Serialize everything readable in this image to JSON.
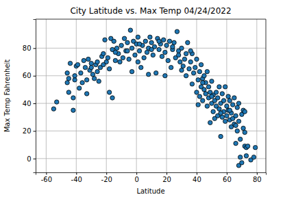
{
  "chart_data": {
    "type": "scatter",
    "title": "City Latitude vs. Max Temp 04/24/2022",
    "x_label": "Latitude",
    "y_label": "Max Temp Fahrenheit",
    "x": [
      -55,
      -53,
      -46,
      -46,
      -45,
      -45,
      -44,
      -42,
      -42,
      -41,
      -41,
      -40,
      -39,
      -38,
      -37,
      -36,
      -35,
      -34,
      -33,
      -33,
      -32,
      -31,
      -30,
      -29,
      -28,
      -27,
      -26,
      -25,
      -24,
      -23,
      -22,
      -21,
      -20,
      -19,
      -18,
      -18,
      -17,
      -16,
      -16,
      -15,
      -14,
      -13,
      -12,
      -11,
      -10,
      -9,
      -8,
      -7,
      -6,
      -5,
      -4,
      -3,
      -3,
      -2,
      -1,
      0,
      1,
      1,
      2,
      3,
      4,
      5,
      6,
      7,
      8,
      8,
      9,
      10,
      11,
      12,
      13,
      14,
      15,
      16,
      17,
      18,
      19,
      19,
      20,
      21,
      22,
      23,
      24,
      25,
      26,
      27,
      28,
      29,
      30,
      30,
      31,
      32,
      33,
      33,
      34,
      35,
      36,
      37,
      37,
      38,
      39,
      40,
      40,
      41,
      41,
      42,
      42,
      43,
      43,
      44,
      44,
      45,
      45,
      46,
      46,
      47,
      47,
      48,
      48,
      49,
      49,
      50,
      50,
      51,
      51,
      52,
      52,
      53,
      53,
      54,
      54,
      55,
      55,
      56,
      56,
      57,
      57,
      58,
      58,
      59,
      59,
      60,
      60,
      61,
      61,
      62,
      62,
      63,
      63,
      64,
      64,
      65,
      65,
      66,
      66,
      67,
      67,
      68,
      68,
      69,
      69,
      70,
      70,
      71,
      71,
      72,
      72,
      73,
      73,
      74,
      76,
      78,
      79,
      -30,
      -26,
      -22,
      -14,
      -6,
      2,
      10,
      15,
      24,
      28,
      36,
      44,
      50,
      56,
      62,
      66,
      68,
      72
    ],
    "values": [
      36,
      41,
      55,
      62,
      48,
      58,
      69,
      44,
      35,
      57,
      60,
      67,
      68,
      51,
      62,
      55,
      71,
      66,
      47,
      57,
      72,
      64,
      69,
      61,
      58,
      68,
      63,
      56,
      66,
      74,
      76,
      86,
      70,
      73,
      48,
      65,
      87,
      44,
      79,
      85,
      71,
      80,
      76,
      70,
      82,
      73,
      87,
      78,
      84,
      72,
      93,
      63,
      80,
      85,
      75,
      83,
      70,
      88,
      78,
      66,
      82,
      73,
      85,
      77,
      61,
      80,
      88,
      84,
      75,
      81,
      62,
      87,
      79,
      83,
      74,
      86,
      60,
      77,
      82,
      71,
      85,
      66,
      79,
      84,
      73,
      92,
      78,
      70,
      64,
      80,
      67,
      72,
      60,
      76,
      84,
      65,
      70,
      54,
      76,
      62,
      66,
      48,
      72,
      57,
      39,
      63,
      45,
      52,
      68,
      58,
      42,
      50,
      60,
      47,
      55,
      38,
      63,
      52,
      44,
      26,
      48,
      40,
      56,
      34,
      46,
      29,
      42,
      38,
      48,
      31,
      44,
      36,
      52,
      16,
      40,
      30,
      47,
      34,
      42,
      27,
      52,
      38,
      31,
      45,
      35,
      28,
      42,
      33,
      23,
      39,
      29,
      25,
      44,
      11,
      31,
      20,
      37,
      -5,
      27,
      14,
      1,
      -3,
      32,
      35,
      22,
      9,
      19,
      2,
      8,
      9,
      -1,
      1,
      8,
      66,
      70,
      68,
      77,
      78,
      83,
      79,
      85,
      81,
      75,
      78,
      55,
      45,
      33,
      35,
      24,
      40,
      34
    ],
    "color": "#1f77b4",
    "marker": "circle",
    "xlim": [
      -67,
      86
    ],
    "ylim": [
      -10,
      101
    ],
    "xticks": [
      -60,
      -40,
      -20,
      0,
      20,
      40,
      60,
      80
    ],
    "yticks": [
      0,
      20,
      40,
      60,
      80
    ],
    "grid": true
  }
}
